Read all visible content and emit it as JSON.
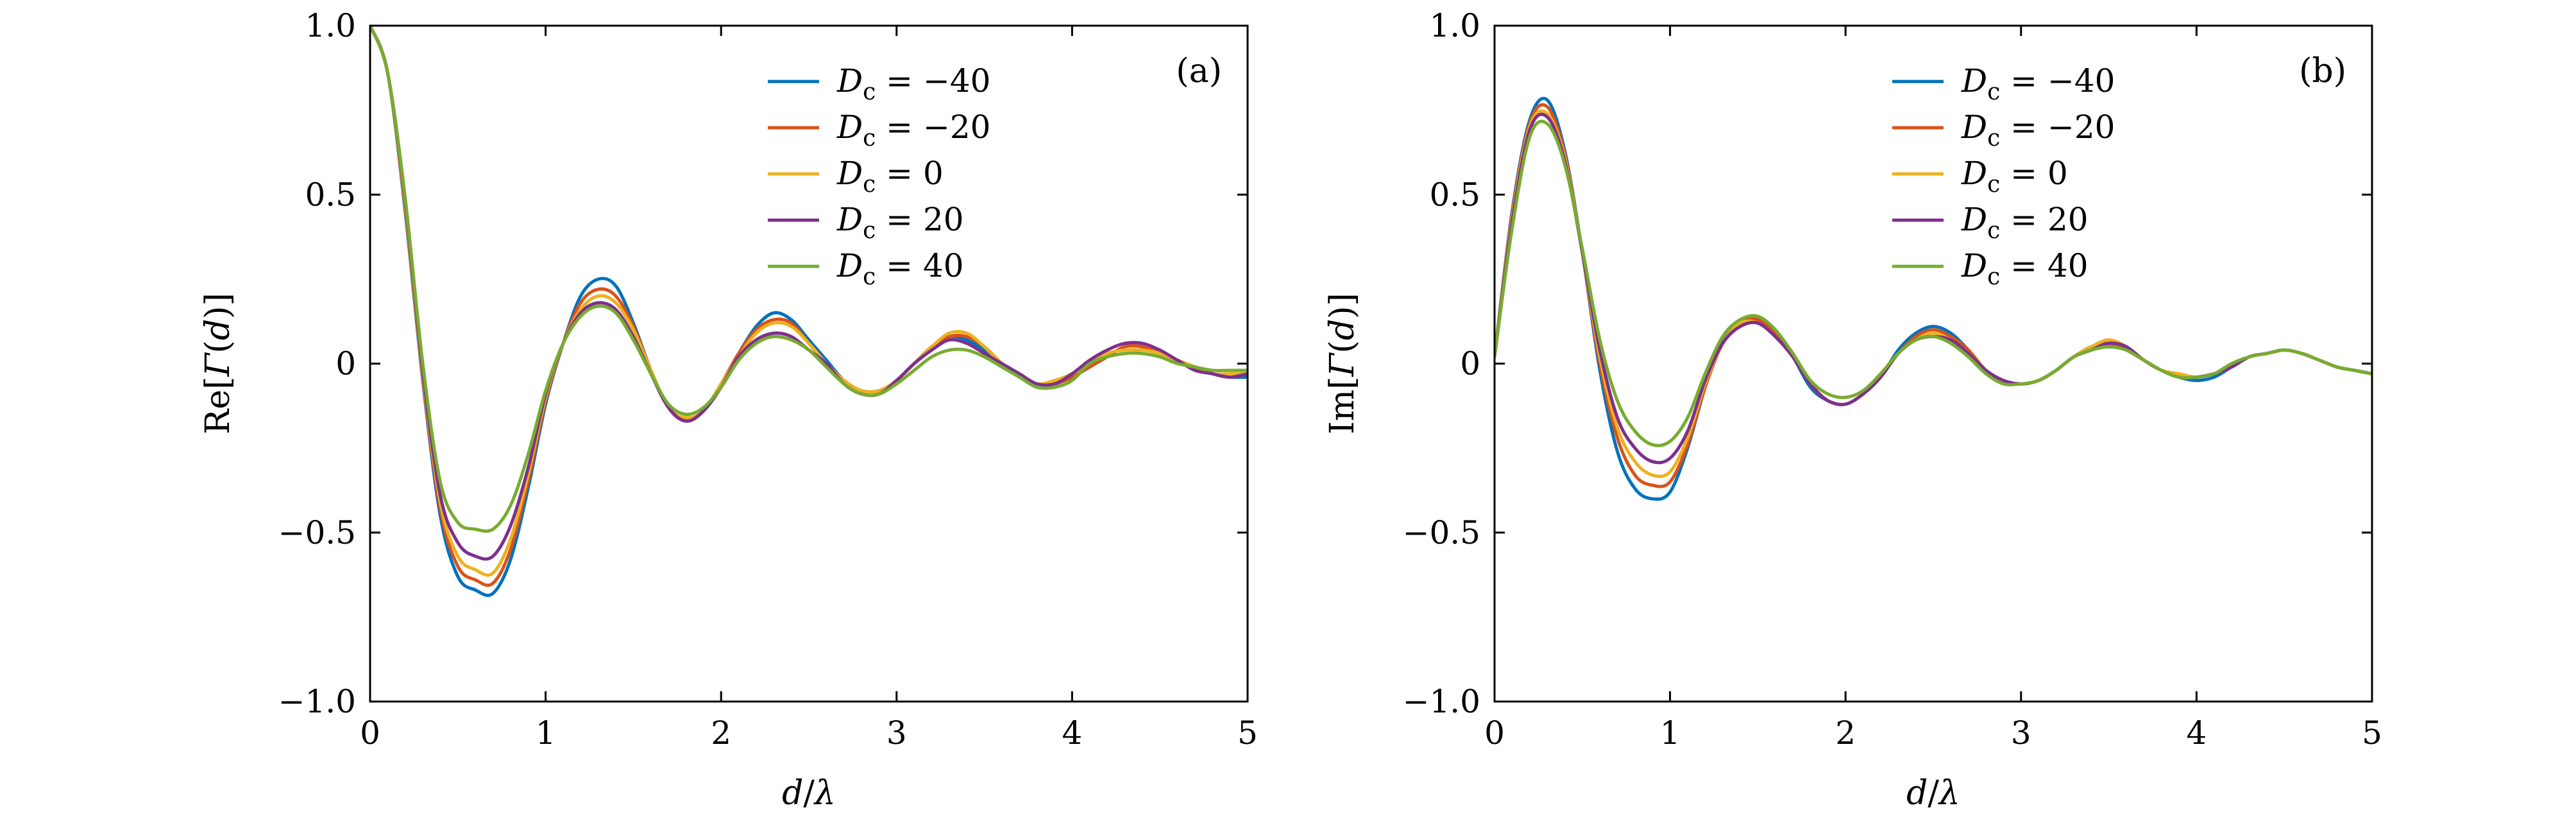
{
  "chart_data": [
    {
      "type": "line",
      "panel_label": "(a)",
      "xlabel": "d/λ",
      "ylabel": "Re[Γ(d)]",
      "xlim": [
        0,
        5
      ],
      "ylim": [
        -1.0,
        1.0
      ],
      "x_ticks": [
        0,
        1,
        2,
        3,
        4,
        5
      ],
      "x_tick_labels": [
        "0",
        "1",
        "2",
        "3",
        "4",
        "5"
      ],
      "y_ticks": [
        -1.0,
        -0.5,
        0,
        0.5,
        1.0
      ],
      "y_tick_labels": [
        "−1.0",
        "−0.5",
        "0",
        "0.5",
        "1.0"
      ],
      "grid": false,
      "legend_position": "top-right",
      "x": [
        0,
        0.1,
        0.2,
        0.3,
        0.4,
        0.5,
        0.6,
        0.7,
        0.8,
        0.9,
        1.0,
        1.1,
        1.2,
        1.3,
        1.4,
        1.5,
        1.6,
        1.7,
        1.8,
        1.9,
        2.0,
        2.1,
        2.2,
        2.3,
        2.4,
        2.5,
        2.6,
        2.7,
        2.8,
        2.9,
        3.0,
        3.1,
        3.2,
        3.3,
        3.4,
        3.5,
        3.6,
        3.7,
        3.8,
        3.9,
        4.0,
        4.1,
        4.2,
        4.3,
        4.4,
        4.5,
        4.6,
        4.7,
        4.8,
        4.9,
        5.0
      ],
      "series": [
        {
          "name": "D_c = −40",
          "color": "#0072BD",
          "values": [
            1.0,
            0.86,
            0.45,
            -0.05,
            -0.45,
            -0.63,
            -0.67,
            -0.68,
            -0.58,
            -0.37,
            -0.12,
            0.06,
            0.2,
            0.25,
            0.23,
            0.12,
            -0.02,
            -0.13,
            -0.17,
            -0.14,
            -0.06,
            0.03,
            0.11,
            0.15,
            0.13,
            0.07,
            0.01,
            -0.05,
            -0.08,
            -0.08,
            -0.05,
            0.0,
            0.05,
            0.08,
            0.07,
            0.04,
            0.0,
            -0.04,
            -0.06,
            -0.06,
            -0.04,
            -0.01,
            0.02,
            0.05,
            0.05,
            0.03,
            0.01,
            -0.01,
            -0.03,
            -0.04,
            -0.04
          ]
        },
        {
          "name": "D_c = −20",
          "color": "#D95319",
          "values": [
            1.0,
            0.86,
            0.46,
            -0.04,
            -0.43,
            -0.6,
            -0.64,
            -0.65,
            -0.55,
            -0.35,
            -0.11,
            0.06,
            0.18,
            0.22,
            0.2,
            0.11,
            -0.02,
            -0.13,
            -0.17,
            -0.14,
            -0.06,
            0.03,
            0.1,
            0.13,
            0.12,
            0.06,
            0.0,
            -0.05,
            -0.08,
            -0.08,
            -0.05,
            0.0,
            0.05,
            0.08,
            0.08,
            0.05,
            0.0,
            -0.04,
            -0.06,
            -0.06,
            -0.04,
            -0.01,
            0.02,
            0.05,
            0.05,
            0.03,
            0.01,
            -0.01,
            -0.03,
            -0.04,
            -0.03
          ]
        },
        {
          "name": "D_c = 0",
          "color": "#EDB120",
          "values": [
            1.0,
            0.86,
            0.47,
            -0.03,
            -0.41,
            -0.57,
            -0.61,
            -0.62,
            -0.52,
            -0.33,
            -0.1,
            0.06,
            0.16,
            0.2,
            0.18,
            0.1,
            -0.02,
            -0.13,
            -0.16,
            -0.14,
            -0.06,
            0.02,
            0.09,
            0.12,
            0.11,
            0.06,
            0.0,
            -0.05,
            -0.08,
            -0.08,
            -0.05,
            0.0,
            0.05,
            0.09,
            0.09,
            0.05,
            0.0,
            -0.04,
            -0.06,
            -0.05,
            -0.03,
            0.0,
            0.03,
            0.04,
            0.04,
            0.03,
            0.01,
            -0.01,
            -0.03,
            -0.03,
            -0.03
          ]
        },
        {
          "name": "D_c = 20",
          "color": "#7E2F8E",
          "values": [
            1.0,
            0.86,
            0.48,
            -0.02,
            -0.39,
            -0.53,
            -0.57,
            -0.57,
            -0.48,
            -0.31,
            -0.09,
            0.06,
            0.15,
            0.18,
            0.16,
            0.08,
            -0.03,
            -0.13,
            -0.17,
            -0.14,
            -0.07,
            0.02,
            0.07,
            0.09,
            0.08,
            0.04,
            0.0,
            -0.06,
            -0.09,
            -0.09,
            -0.05,
            0.0,
            0.04,
            0.07,
            0.06,
            0.03,
            0.0,
            -0.03,
            -0.06,
            -0.06,
            -0.03,
            0.01,
            0.04,
            0.06,
            0.06,
            0.04,
            0.01,
            -0.02,
            -0.03,
            -0.04,
            -0.03
          ]
        },
        {
          "name": "D_c = 40",
          "color": "#77AC30",
          "values": [
            1.0,
            0.86,
            0.49,
            0.0,
            -0.35,
            -0.47,
            -0.49,
            -0.49,
            -0.42,
            -0.27,
            -0.08,
            0.06,
            0.14,
            0.17,
            0.15,
            0.07,
            -0.03,
            -0.12,
            -0.15,
            -0.13,
            -0.07,
            0.01,
            0.06,
            0.08,
            0.07,
            0.04,
            -0.01,
            -0.06,
            -0.09,
            -0.09,
            -0.06,
            -0.02,
            0.02,
            0.04,
            0.04,
            0.02,
            -0.01,
            -0.04,
            -0.07,
            -0.07,
            -0.05,
            0.0,
            0.02,
            0.03,
            0.03,
            0.02,
            0.0,
            -0.01,
            -0.02,
            -0.02,
            -0.02
          ]
        }
      ]
    },
    {
      "type": "line",
      "panel_label": "(b)",
      "xlabel": "d/λ",
      "ylabel": "Im[Γ(d)]",
      "xlim": [
        0,
        5
      ],
      "ylim": [
        -1.0,
        1.0
      ],
      "x_ticks": [
        0,
        1,
        2,
        3,
        4,
        5
      ],
      "x_tick_labels": [
        "0",
        "1",
        "2",
        "3",
        "4",
        "5"
      ],
      "y_ticks": [
        -1.0,
        -0.5,
        0,
        0.5,
        1.0
      ],
      "y_tick_labels": [
        "−1.0",
        "−0.5",
        "0",
        "0.5",
        "1.0"
      ],
      "grid": false,
      "legend_position": "top-right",
      "x": [
        0,
        0.1,
        0.2,
        0.3,
        0.4,
        0.5,
        0.6,
        0.7,
        0.8,
        0.9,
        1.0,
        1.1,
        1.2,
        1.3,
        1.4,
        1.5,
        1.6,
        1.7,
        1.8,
        1.9,
        2.0,
        2.1,
        2.2,
        2.3,
        2.4,
        2.5,
        2.6,
        2.7,
        2.8,
        2.9,
        3.0,
        3.1,
        3.2,
        3.3,
        3.4,
        3.5,
        3.6,
        3.7,
        3.8,
        3.9,
        4.0,
        4.1,
        4.2,
        4.3,
        4.4,
        4.5,
        4.6,
        4.7,
        4.8,
        4.9,
        5.0
      ],
      "series": [
        {
          "name": "D_c = −40",
          "color": "#0072BD",
          "values": [
            0.02,
            0.45,
            0.72,
            0.78,
            0.63,
            0.33,
            -0.02,
            -0.26,
            -0.37,
            -0.4,
            -0.38,
            -0.25,
            -0.07,
            0.07,
            0.13,
            0.13,
            0.09,
            0.02,
            -0.07,
            -0.11,
            -0.12,
            -0.09,
            -0.04,
            0.04,
            0.09,
            0.11,
            0.09,
            0.04,
            -0.02,
            -0.05,
            -0.06,
            -0.05,
            -0.02,
            0.02,
            0.04,
            0.05,
            0.04,
            0.01,
            -0.02,
            -0.04,
            -0.05,
            -0.04,
            -0.01,
            0.02,
            0.03,
            0.04,
            0.03,
            0.01,
            -0.01,
            -0.02,
            -0.03
          ]
        },
        {
          "name": "D_c = −20",
          "color": "#D95319",
          "values": [
            0.02,
            0.44,
            0.71,
            0.76,
            0.62,
            0.33,
            0.0,
            -0.22,
            -0.33,
            -0.36,
            -0.35,
            -0.24,
            -0.07,
            0.06,
            0.12,
            0.13,
            0.09,
            0.02,
            -0.06,
            -0.11,
            -0.12,
            -0.09,
            -0.04,
            0.03,
            0.08,
            0.1,
            0.08,
            0.04,
            -0.02,
            -0.05,
            -0.06,
            -0.05,
            -0.02,
            0.02,
            0.05,
            0.06,
            0.04,
            0.01,
            -0.02,
            -0.04,
            -0.04,
            -0.03,
            -0.01,
            0.02,
            0.03,
            0.04,
            0.03,
            0.01,
            -0.01,
            -0.02,
            -0.03
          ]
        },
        {
          "name": "D_c = 0",
          "color": "#EDB120",
          "values": [
            0.02,
            0.43,
            0.7,
            0.74,
            0.61,
            0.33,
            0.02,
            -0.19,
            -0.29,
            -0.33,
            -0.32,
            -0.22,
            -0.06,
            0.06,
            0.12,
            0.12,
            0.08,
            0.02,
            -0.06,
            -0.11,
            -0.12,
            -0.09,
            -0.04,
            0.03,
            0.07,
            0.09,
            0.07,
            0.03,
            -0.02,
            -0.05,
            -0.06,
            -0.05,
            -0.02,
            0.02,
            0.05,
            0.07,
            0.05,
            0.01,
            -0.02,
            -0.03,
            -0.04,
            -0.03,
            -0.01,
            0.02,
            0.03,
            0.04,
            0.03,
            0.01,
            -0.01,
            -0.02,
            -0.03
          ]
        },
        {
          "name": "D_c = 20",
          "color": "#7E2F8E",
          "values": [
            0.02,
            0.42,
            0.69,
            0.73,
            0.6,
            0.33,
            0.04,
            -0.16,
            -0.25,
            -0.29,
            -0.28,
            -0.2,
            -0.05,
            0.06,
            0.11,
            0.12,
            0.08,
            0.02,
            -0.06,
            -0.11,
            -0.12,
            -0.09,
            -0.04,
            0.03,
            0.07,
            0.08,
            0.07,
            0.03,
            -0.02,
            -0.05,
            -0.06,
            -0.05,
            -0.02,
            0.02,
            0.04,
            0.06,
            0.05,
            0.01,
            -0.02,
            -0.04,
            -0.04,
            -0.03,
            -0.01,
            0.02,
            0.03,
            0.04,
            0.03,
            0.01,
            -0.01,
            -0.02,
            -0.03
          ]
        },
        {
          "name": "D_c = 40",
          "color": "#77AC30",
          "values": [
            0.02,
            0.4,
            0.67,
            0.71,
            0.59,
            0.34,
            0.07,
            -0.11,
            -0.2,
            -0.24,
            -0.23,
            -0.16,
            -0.03,
            0.08,
            0.13,
            0.14,
            0.1,
            0.03,
            -0.05,
            -0.09,
            -0.1,
            -0.08,
            -0.03,
            0.03,
            0.07,
            0.08,
            0.06,
            0.02,
            -0.03,
            -0.06,
            -0.06,
            -0.05,
            -0.02,
            0.02,
            0.04,
            0.05,
            0.04,
            0.01,
            -0.02,
            -0.04,
            -0.04,
            -0.03,
            0.0,
            0.02,
            0.03,
            0.04,
            0.03,
            0.01,
            -0.01,
            -0.02,
            -0.03
          ]
        }
      ]
    }
  ]
}
